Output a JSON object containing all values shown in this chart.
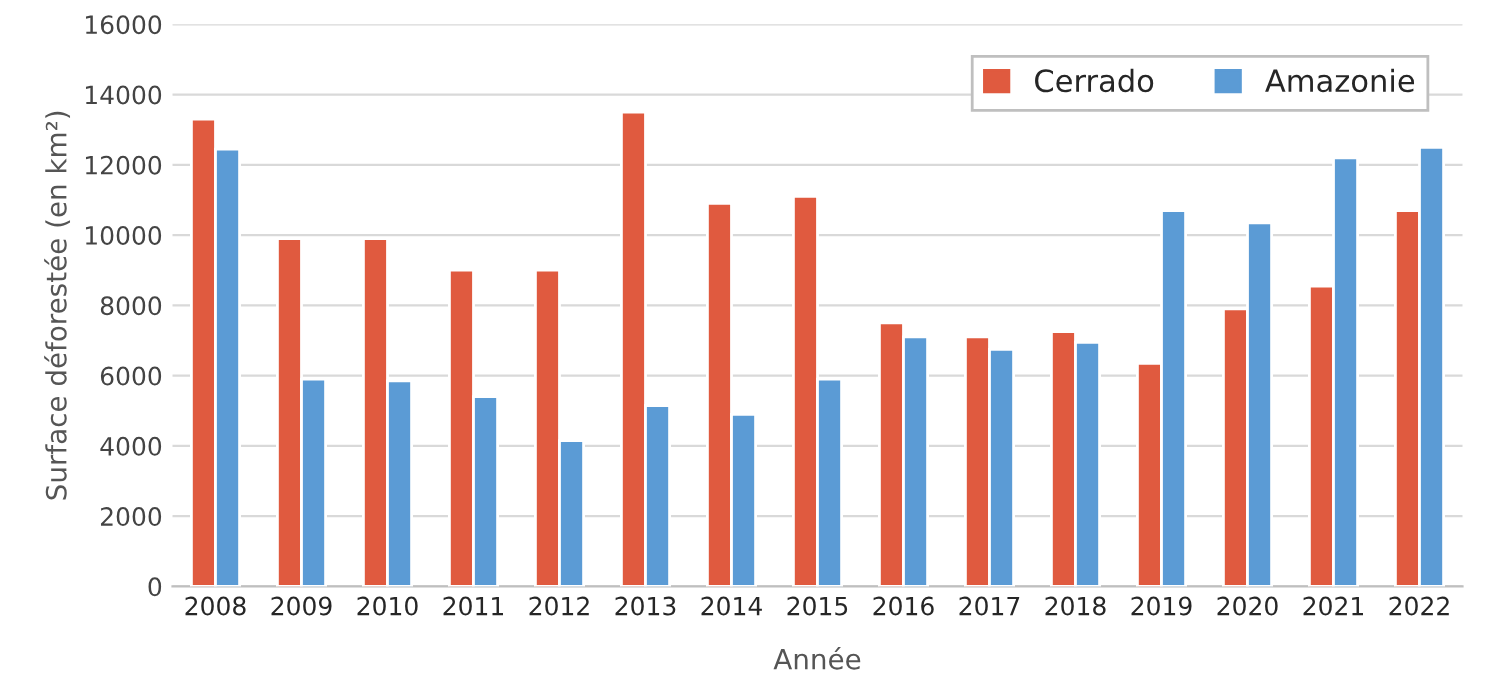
{
  "chart_data": {
    "type": "bar",
    "xlabel": "Année",
    "ylabel": "Surface déforestée (en km²)",
    "categories": [
      "2008",
      "2009",
      "2010",
      "2011",
      "2012",
      "2013",
      "2014",
      "2015",
      "2016",
      "2017",
      "2018",
      "2019",
      "2020",
      "2021",
      "2022"
    ],
    "series": [
      {
        "name": "Cerrado",
        "color": "#e05a3f",
        "values": [
          13300,
          9900,
          9900,
          9000,
          9000,
          13500,
          10900,
          11100,
          7500,
          7100,
          7250,
          6350,
          7900,
          8550,
          10700
        ]
      },
      {
        "name": "Amazonie",
        "color": "#5b9bd5",
        "values": [
          12450,
          5900,
          5850,
          5400,
          4150,
          5150,
          4900,
          5900,
          7100,
          6750,
          6950,
          10700,
          10350,
          12200,
          12500
        ]
      }
    ],
    "ylim": [
      0,
      16000
    ],
    "yticks": [
      0,
      2000,
      4000,
      6000,
      8000,
      10000,
      12000,
      14000,
      16000
    ],
    "grid": "y",
    "legend": "top right"
  }
}
